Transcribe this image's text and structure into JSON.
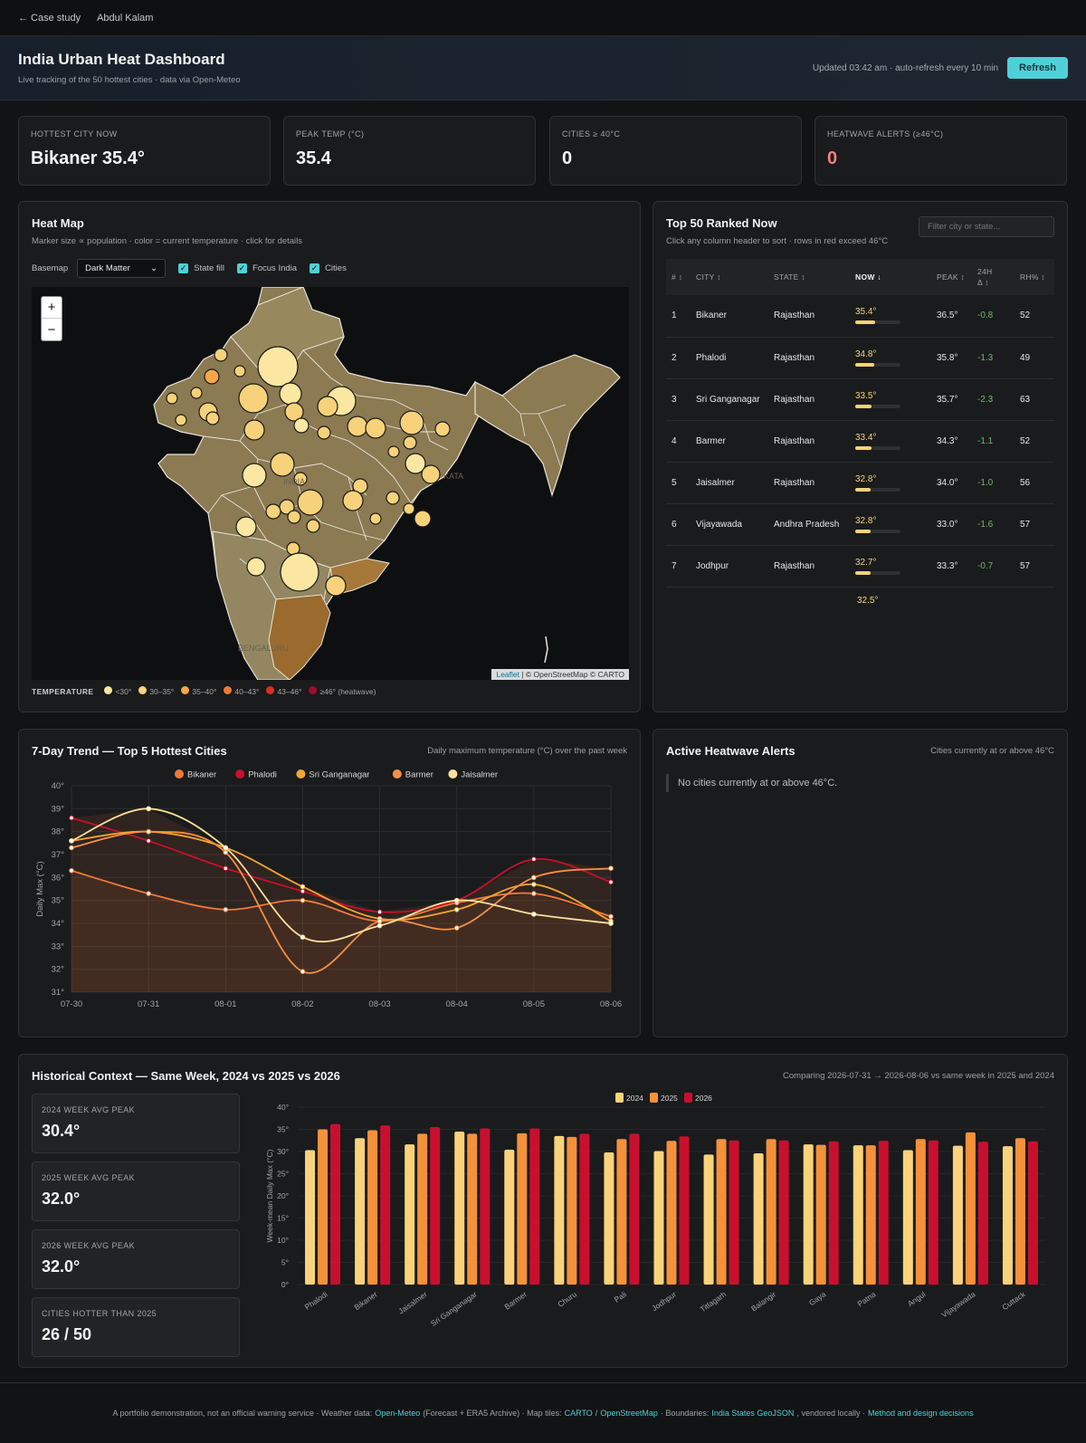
{
  "nav": {
    "back": "← Case study",
    "author": "Abdul Kalam"
  },
  "header": {
    "title": "India Urban Heat Dashboard",
    "subtitle": "Live tracking of the 50 hottest cities · data via Open-Meteo",
    "updated": "Updated 03:42 am · auto-refresh every 10 min",
    "refresh": "Refresh"
  },
  "stats": [
    {
      "label": "HOTTEST CITY NOW",
      "value": "Bikaner 35.4°",
      "color": "#f4f4f4"
    },
    {
      "label": "PEAK TEMP (°C)",
      "value": "35.4",
      "color": "#f4f4f4"
    },
    {
      "label": "CITIES ≥ 40°C",
      "value": "0",
      "color": "#f4f4f4"
    },
    {
      "label": "HEATWAVE ALERTS (≥46°C)",
      "value": "0",
      "color": "#f08080"
    }
  ],
  "heatmap": {
    "title": "Heat Map",
    "subtitle": "Marker size ∝ population · color = current temperature · click for details",
    "basemap_label": "Basemap",
    "basemap_value": "Dark Matter",
    "toggles": [
      "State fill",
      "Focus India",
      "Cities"
    ],
    "zoom_in": "+",
    "zoom_out": "−",
    "attribution_leaflet": "Leaflet",
    "attribution_rest": " | © OpenStreetMap © CARTO",
    "map_labels": [
      "INDIA",
      "BENGALURU",
      "KATA"
    ],
    "legend_title": "TEMPERATURE",
    "legend": [
      {
        "label": "<30°",
        "color": "#fbe7a1"
      },
      {
        "label": "30–35°",
        "color": "#f7d27a"
      },
      {
        "label": "35–40°",
        "color": "#f5a74a"
      },
      {
        "label": "40–43°",
        "color": "#ef7a35"
      },
      {
        "label": "43–46°",
        "color": "#d7301f"
      },
      {
        "label": "≥46° (heatwave)",
        "color": "#9e0d2e"
      }
    ]
  },
  "ranked": {
    "title": "Top 50 Ranked Now",
    "subtitle": "Click any column header to sort · rows in red exceed 46°C",
    "filter_placeholder": "Filter city or state...",
    "headers": {
      "rank": "# ↕",
      "city": "CITY ↕",
      "state": "STATE ↕",
      "now": "NOW ↓",
      "peak": "PEAK ↕",
      "delta_1": "24H",
      "delta_2": "Δ ↕",
      "rh": "RH% ↕"
    },
    "rows": [
      {
        "rank": "1",
        "city": "Bikaner",
        "state": "Rajasthan",
        "now": "35.4°",
        "frac": 0.44,
        "peak": "36.5°",
        "delta": "-0.8",
        "rh": "52"
      },
      {
        "rank": "2",
        "city": "Phalodi",
        "state": "Rajasthan",
        "now": "34.8°",
        "frac": 0.42,
        "peak": "35.8°",
        "delta": "-1.3",
        "rh": "49"
      },
      {
        "rank": "3",
        "city": "Sri Ganganagar",
        "state": "Rajasthan",
        "now": "33.5°",
        "frac": 0.36,
        "peak": "35.7°",
        "delta": "-2.3",
        "rh": "63"
      },
      {
        "rank": "4",
        "city": "Barmer",
        "state": "Rajasthan",
        "now": "33.4°",
        "frac": 0.36,
        "peak": "34.3°",
        "delta": "-1.1",
        "rh": "52"
      },
      {
        "rank": "5",
        "city": "Jaisalmer",
        "state": "Rajasthan",
        "now": "32.8°",
        "frac": 0.33,
        "peak": "34.0°",
        "delta": "-1.0",
        "rh": "56"
      },
      {
        "rank": "6",
        "city": "Vijayawada",
        "state": "Andhra Pradesh",
        "now": "32.8°",
        "frac": 0.33,
        "peak": "33.0°",
        "delta": "-1.6",
        "rh": "57"
      },
      {
        "rank": "7",
        "city": "Jodhpur",
        "state": "Rajasthan",
        "now": "32.7°",
        "frac": 0.33,
        "peak": "33.3°",
        "delta": "-0.7",
        "rh": "57"
      }
    ],
    "partial_next": "32.5°"
  },
  "trend": {
    "title": "7-Day Trend — Top 5 Hottest Cities",
    "subtitle": "Daily maximum temperature (°C) over the past week"
  },
  "alerts": {
    "title": "Active Heatwave Alerts",
    "subtitle": "Cities currently at or above 46°C",
    "empty": "No cities currently at or above 46°C."
  },
  "history": {
    "title": "Historical Context — Same Week, 2024 vs 2025 vs 2026",
    "subtitle": "Comparing 2026-07-31 → 2026-08-06 vs same week in 2025 and 2024",
    "cards": [
      {
        "label": "2024 WEEK AVG PEAK",
        "value": "30.4°"
      },
      {
        "label": "2025 WEEK AVG PEAK",
        "value": "32.0°"
      },
      {
        "label": "2026 WEEK AVG PEAK",
        "value": "32.0°"
      },
      {
        "label": "CITIES HOTTER THAN 2025",
        "value": "26 / 50"
      }
    ]
  },
  "chart_data": [
    {
      "type": "line",
      "title": "7-Day Trend — Top 5 Hottest Cities",
      "xlabel": "",
      "ylabel": "Daily Max (°C)",
      "x": [
        "07-30",
        "07-31",
        "08-01",
        "08-02",
        "08-03",
        "08-04",
        "08-05",
        "08-06"
      ],
      "ylim": [
        31,
        40
      ],
      "yticks": [
        "31°",
        "32°",
        "33°",
        "34°",
        "35°",
        "36°",
        "37°",
        "38°",
        "39°",
        "40°"
      ],
      "legend_position": "top",
      "grid": true,
      "series": [
        {
          "name": "Bikaner",
          "color": "#f07a3a",
          "values": [
            36.3,
            35.3,
            34.6,
            35.0,
            34.1,
            34.9,
            35.3,
            34.3
          ]
        },
        {
          "name": "Phalodi",
          "color": "#c8102e",
          "values": [
            38.6,
            37.6,
            36.4,
            35.4,
            34.5,
            35.0,
            36.8,
            35.8
          ]
        },
        {
          "name": "Sri Ganganagar",
          "color": "#f5a531",
          "values": [
            37.6,
            38.0,
            37.3,
            35.6,
            34.2,
            34.6,
            35.7,
            34.1
          ]
        },
        {
          "name": "Barmer",
          "color": "#f49047",
          "values": [
            37.3,
            38.0,
            37.1,
            31.9,
            34.1,
            33.8,
            36.0,
            36.4
          ]
        },
        {
          "name": "Jaisalmer",
          "color": "#fbe09a",
          "values": [
            37.6,
            39.0,
            37.3,
            33.4,
            33.9,
            35.0,
            34.4,
            34.0
          ]
        }
      ]
    },
    {
      "type": "bar",
      "title": "",
      "xlabel": "",
      "ylabel": "Week-mean Daily Max (°C)",
      "ylim": [
        0,
        40
      ],
      "yticks": [
        "0°",
        "5°",
        "10°",
        "15°",
        "20°",
        "25°",
        "30°",
        "35°",
        "40°"
      ],
      "legend_position": "top",
      "categories": [
        "Phalodi",
        "Bikaner",
        "Jaisalmer",
        "Sri Ganganagar",
        "Barmer",
        "Churu",
        "Pali",
        "Jodhpur",
        "Titlagarh",
        "Balangir",
        "Gaya",
        "Patna",
        "Angul",
        "Vijayawada",
        "Cuttack"
      ],
      "series": [
        {
          "name": "2024",
          "color": "#fbd27a",
          "values": [
            30.3,
            33.0,
            31.6,
            34.5,
            30.4,
            33.5,
            29.8,
            30.1,
            29.3,
            29.6,
            31.6,
            31.4,
            30.3,
            31.3,
            31.2
          ]
        },
        {
          "name": "2025",
          "color": "#f5913a",
          "values": [
            35.0,
            34.8,
            34.0,
            34.0,
            34.1,
            33.3,
            32.8,
            32.4,
            32.8,
            32.8,
            31.5,
            31.4,
            32.8,
            34.3,
            33.0
          ]
        },
        {
          "name": "2026",
          "color": "#c8102e",
          "values": [
            36.2,
            35.9,
            35.5,
            35.2,
            35.2,
            34.0,
            34.0,
            33.4,
            32.5,
            32.5,
            32.3,
            32.4,
            32.5,
            32.2,
            32.3
          ]
        }
      ]
    }
  ],
  "footer": {
    "text1": "A portfolio demonstration, not an official warning service · Weather data:",
    "link1": "Open-Meteo",
    "text2": "(Forecast + ERA5 Archive) · Map tiles:",
    "link2": "CARTO",
    "text3": "/",
    "link3": "OpenStreetMap",
    "text4": "· Boundaries:",
    "link4": "India States GeoJSON",
    "text5": ", vendored locally ·",
    "link5": "Method and design decisions"
  }
}
